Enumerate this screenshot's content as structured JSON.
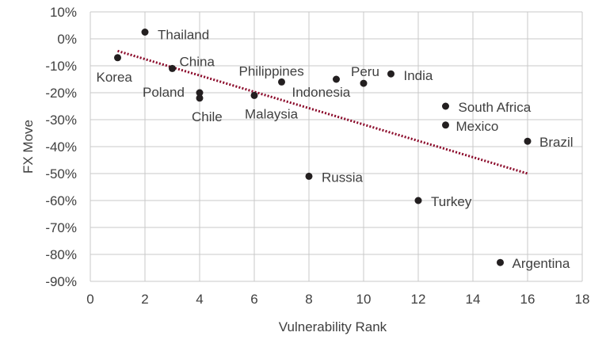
{
  "chart_data": {
    "type": "scatter",
    "title": "",
    "xlabel": "Vulnerability Rank",
    "ylabel": "FX Move",
    "xlim": [
      0,
      18
    ],
    "ylim": [
      -90,
      10
    ],
    "x_ticks": [
      0,
      2,
      4,
      6,
      8,
      10,
      12,
      14,
      16,
      18
    ],
    "y_ticks": [
      10,
      0,
      -10,
      -20,
      -30,
      -40,
      -50,
      -60,
      -70,
      -80,
      -90
    ],
    "y_tick_labels": [
      "10%",
      "0%",
      "-10%",
      "-20%",
      "-30%",
      "-40%",
      "-50%",
      "-60%",
      "-70%",
      "-80%",
      "-90%"
    ],
    "grid": true,
    "marker_color": "#231f20",
    "trendline": {
      "type": "linear",
      "x_start": 1,
      "x_end": 16,
      "y_start": -4.5,
      "y_end": -50,
      "color": "#8b0a2a",
      "style": "dotted"
    },
    "points": [
      {
        "name": "Korea",
        "x": 1,
        "y": -7
      },
      {
        "name": "Thailand",
        "x": 2,
        "y": 2.5
      },
      {
        "name": "China",
        "x": 3,
        "y": -11
      },
      {
        "name": "Poland",
        "x": 4,
        "y": -20
      },
      {
        "name": "Chile",
        "x": 4,
        "y": -22
      },
      {
        "name": "Malaysia",
        "x": 6,
        "y": -21
      },
      {
        "name": "Philippines",
        "x": 7,
        "y": -16
      },
      {
        "name": "Russia",
        "x": 8,
        "y": -51
      },
      {
        "name": "Indonesia",
        "x": 9,
        "y": -15
      },
      {
        "name": "Peru",
        "x": 10,
        "y": -16.5
      },
      {
        "name": "India",
        "x": 11,
        "y": -13
      },
      {
        "name": "Turkey",
        "x": 12,
        "y": -60
      },
      {
        "name": "South Africa",
        "x": 13,
        "y": -25
      },
      {
        "name": "Mexico",
        "x": 13,
        "y": -32
      },
      {
        "name": "Argentina",
        "x": 15,
        "y": -83
      },
      {
        "name": "Brazil",
        "x": 16,
        "y": -38
      }
    ]
  }
}
